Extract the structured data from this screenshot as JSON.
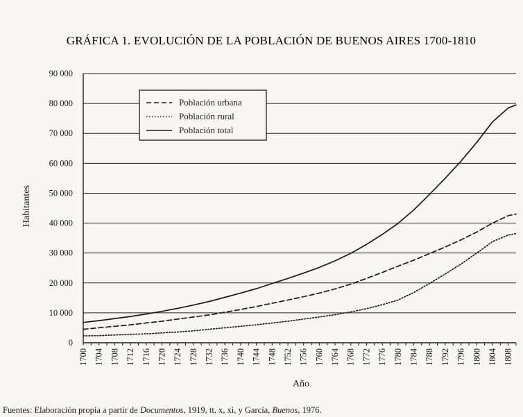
{
  "chart_data": {
    "type": "line",
    "title": "GRÁFICA 1. EVOLUCIÓN DE LA POBLACIÓN DE BUENOS AIRES 1700-1810",
    "xlabel": "Año",
    "ylabel": "Habitantes",
    "xlim": [
      1700,
      1810
    ],
    "ylim": [
      0,
      90000
    ],
    "x_ticks": [
      "1700",
      "1704",
      "1708",
      "1712",
      "1716",
      "1720",
      "1724",
      "1728",
      "1732",
      "1736",
      "1740",
      "1744",
      "1748",
      "1752",
      "1756",
      "1760",
      "1764",
      "1768",
      "1772",
      "1776",
      "1780",
      "1784",
      "1788",
      "1792",
      "1796",
      "1800",
      "1804",
      "1808"
    ],
    "y_ticks": [
      "0",
      "10 000",
      "20 000",
      "30 000",
      "40 000",
      "50 000",
      "60 000",
      "70 000",
      "80 000",
      "90 000"
    ],
    "y_tick_values": [
      0,
      10000,
      20000,
      30000,
      40000,
      50000,
      60000,
      70000,
      80000,
      90000
    ],
    "grid": "horizontal",
    "legend_position": "top-left",
    "x": [
      1700,
      1704,
      1708,
      1712,
      1716,
      1720,
      1724,
      1728,
      1732,
      1736,
      1740,
      1744,
      1748,
      1752,
      1756,
      1760,
      1764,
      1768,
      1772,
      1776,
      1780,
      1784,
      1788,
      1792,
      1796,
      1800,
      1804,
      1808,
      1810
    ],
    "series": [
      {
        "name": "Población urbana",
        "style": "dashed",
        "values": [
          4500,
          5000,
          5500,
          6000,
          6600,
          7200,
          7900,
          8600,
          9300,
          10200,
          11100,
          12100,
          13200,
          14300,
          15400,
          16600,
          18000,
          19600,
          21500,
          23500,
          25600,
          27600,
          29800,
          32000,
          34400,
          37000,
          40000,
          42500,
          43000
        ]
      },
      {
        "name": "Población rural",
        "style": "dotted",
        "values": [
          2300,
          2400,
          2600,
          2800,
          3000,
          3300,
          3600,
          4000,
          4500,
          5000,
          5500,
          6000,
          6600,
          7200,
          7900,
          8600,
          9400,
          10300,
          11400,
          12700,
          14300,
          16800,
          19800,
          23000,
          26300,
          30000,
          33800,
          36000,
          36500
        ]
      },
      {
        "name": "Población total",
        "style": "solid",
        "values": [
          6800,
          7400,
          8100,
          8800,
          9600,
          10500,
          11500,
          12600,
          13800,
          15200,
          16600,
          18100,
          19800,
          21500,
          23300,
          25200,
          27400,
          29900,
          32900,
          36200,
          39900,
          44400,
          49600,
          55000,
          60700,
          67000,
          73800,
          78500,
          79500
        ]
      }
    ],
    "source_note": {
      "prefix": "Fuentes: Elaboración propia a partir de ",
      "italic1": "Documentos",
      "middle": ", 1919, tt. x, xi, y García, ",
      "italic2": "Buenos",
      "suffix": ", 1976."
    }
  }
}
